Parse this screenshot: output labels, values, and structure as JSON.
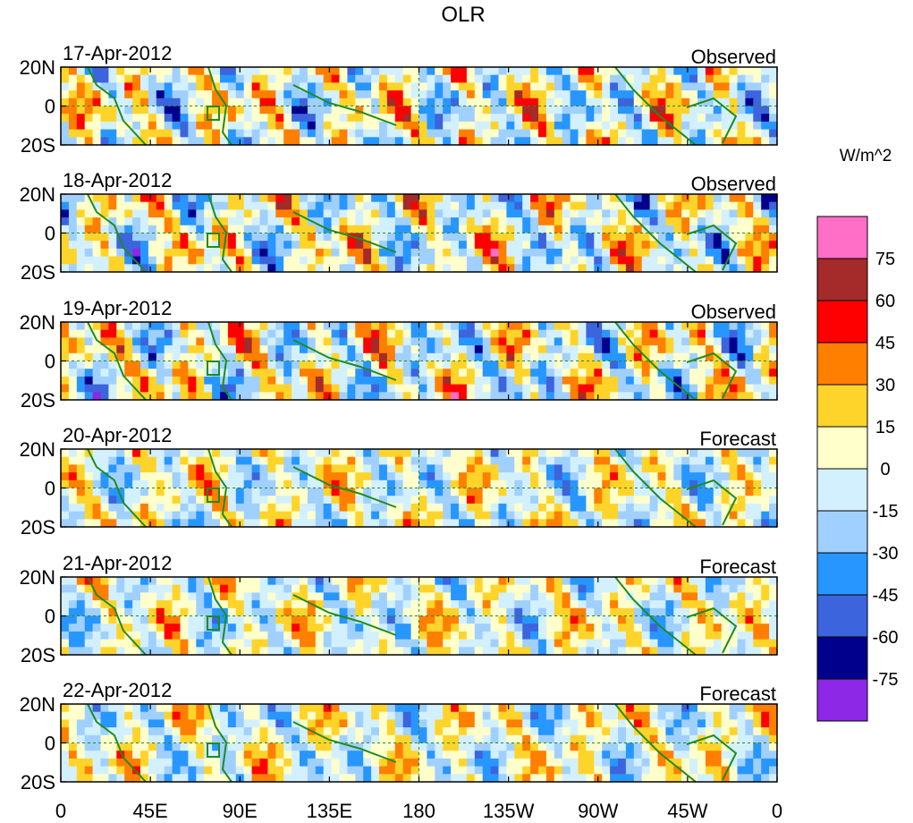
{
  "chart_data": {
    "type": "heatmap",
    "title": "OLR",
    "colorbar": {
      "unit_label": "W/m^2",
      "levels": [
        "75",
        "60",
        "45",
        "30",
        "15",
        "0",
        "-15",
        "-30",
        "-45",
        "-60",
        "-75"
      ],
      "colors": [
        "#ff6ec7",
        "#a52a2a",
        "#ff0000",
        "#ff7f00",
        "#ffd42a",
        "#ffffcc",
        "#d3f0ff",
        "#a0d0ff",
        "#2896ff",
        "#3c64dc",
        "#00008c",
        "#8c28e6"
      ]
    },
    "x_ticks": [
      "0",
      "45E",
      "90E",
      "135E",
      "180",
      "135W",
      "90W",
      "45W",
      "0"
    ],
    "y_ticks": [
      "20N",
      "0",
      "20S"
    ],
    "lon_range": [
      0,
      360
    ],
    "lat_range": [
      -20,
      20
    ],
    "panels": [
      {
        "date": "17-Apr-2012",
        "kind": "Observed"
      },
      {
        "date": "18-Apr-2012",
        "kind": "Observed"
      },
      {
        "date": "19-Apr-2012",
        "kind": "Observed"
      },
      {
        "date": "20-Apr-2012",
        "kind": "Forecast"
      },
      {
        "date": "21-Apr-2012",
        "kind": "Forecast"
      },
      {
        "date": "22-Apr-2012",
        "kind": "Forecast"
      }
    ]
  },
  "style": {
    "coast_color": "#1e8c1e",
    "frame_color": "#000000",
    "ref_line_color": "#2a8a2a"
  }
}
